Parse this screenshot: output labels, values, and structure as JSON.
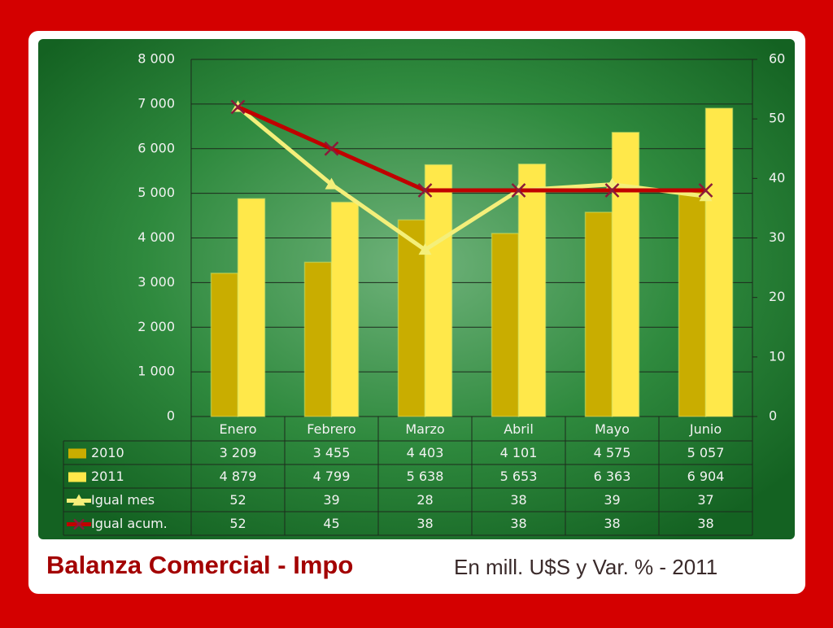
{
  "chart_data": {
    "type": "bar",
    "title": "Balanza Comercial - Impo",
    "subtitle": "En mill. U$S y Var. % - 2011",
    "categories": [
      "Enero",
      "Febrero",
      "Marzo",
      "Abril",
      "Mayo",
      "Junio"
    ],
    "series": [
      {
        "name": "2010",
        "type": "bar",
        "color": "#c9ad00",
        "values": [
          3209,
          3455,
          4403,
          4101,
          4575,
          5057
        ],
        "value_labels": [
          "3 209",
          "3 455",
          "4 403",
          "4 101",
          "4 575",
          "5 057"
        ]
      },
      {
        "name": "2011",
        "type": "bar",
        "color": "#ffe84a",
        "values": [
          4879,
          4799,
          5638,
          5653,
          6363,
          6904
        ],
        "value_labels": [
          "4 879",
          "4 799",
          "5 638",
          "5 653",
          "6 363",
          "6 904"
        ]
      },
      {
        "name": "Igual mes",
        "type": "line",
        "axis": "y2",
        "marker": "triangle",
        "color": "#f4ef7a",
        "values": [
          52,
          39,
          28,
          38,
          39,
          37
        ]
      },
      {
        "name": "Igual acum.",
        "type": "line",
        "axis": "y2",
        "marker": "x",
        "color": "#c00000",
        "values": [
          52,
          45,
          38,
          38,
          38,
          38
        ]
      }
    ],
    "ylim": [
      0,
      8000
    ],
    "yticks": [
      {
        "value": 0,
        "label": "0"
      },
      {
        "value": 1000,
        "label": "1 000"
      },
      {
        "value": 2000,
        "label": "2 000"
      },
      {
        "value": 3000,
        "label": "3 000"
      },
      {
        "value": 4000,
        "label": "4 000"
      },
      {
        "value": 5000,
        "label": "5 000"
      },
      {
        "value": 6000,
        "label": "6 000"
      },
      {
        "value": 7000,
        "label": "7 000"
      },
      {
        "value": 8000,
        "label": "8 000"
      }
    ],
    "y2lim": [
      0,
      60
    ],
    "y2ticks": [
      0,
      10,
      20,
      30,
      40,
      50,
      60
    ],
    "grid": true
  }
}
